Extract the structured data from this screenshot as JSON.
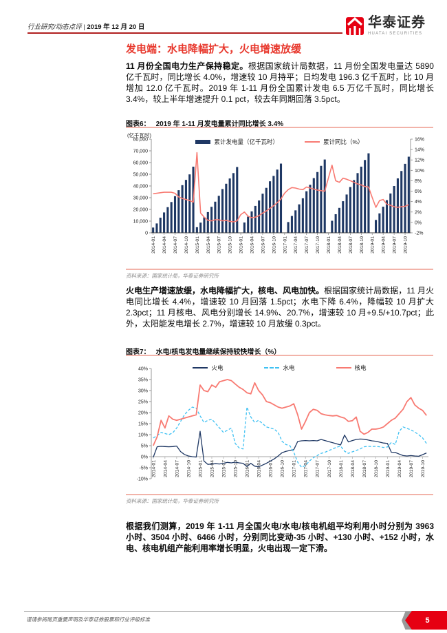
{
  "header": {
    "breadcrumb": "行业研究/动态点评",
    "divider": "|",
    "date": "2019 年 12 月 20 日",
    "brand": {
      "name_cn": "华泰证券",
      "name_en": "HUATAI SECURITIES",
      "logo_color": "#e60012"
    }
  },
  "title": "发电端：水电降幅扩大，火电增速放缓",
  "paragraphs": {
    "p1_bold": "11 月份全国电力生产保持稳定。",
    "p1_rest": "根据国家统计局数据，11 月份全国发电量达 5890 亿千瓦时，同比增长 4.0%，增速较 10 月持平；日均发电 196.3 亿千瓦时，比 10 月增加 12.0 亿千瓦时。2019 年 1-11 月份全国累计发电 6.5 万亿千瓦时，同比增长 3.4%，较上半年增速提升 0.1 pct，较去年同期回落 3.5pct。",
    "p2_bold": "火电生产增速放缓，水电降幅扩大，核电、风电加快。",
    "p2_rest": "根据国家统计局数据，11 月火电同比增长 4.4%，增速较 10 月回落 1.5pct；水电下降 6.4%，降幅较 10 月扩大 2.3pct；11 月核电、风电分别增长 14.9%、20.7%，增速较 10 月+9.5/+10.7pct；此外，太阳能发电增长 2.7%，增速较 10 月放缓 0.3pct。",
    "p3": "根据我们测算，2019 年 1-11 月全国火电/水电/核电机组平均利用小时分别为 3963 小时、3504 小时、6466 小时，分别同比变动-35 小时、+130 小时、+152 小时，水电、核电机组产能利用率增长明显，火电出现一定下滑。"
  },
  "figure6": {
    "label": "图表6：",
    "title": "2019 年 1-11 月发电量累计同比增长 3.4%",
    "unit": "(亿千瓦时)",
    "legend": {
      "bars": "累计发电量（亿千瓦时）",
      "line": "累计同比（%）"
    },
    "source": "资料来源：国家统计局，华泰证券研究所"
  },
  "figure7": {
    "label": "图表7：",
    "title": "水电/核电发电量继续保持较快增长（%）",
    "legend": {
      "fire": "火电",
      "hydro": "水电",
      "nuclear": "核电"
    },
    "source": "资料来源：国家统计局，华泰证券研究所"
  },
  "footer": {
    "disclaimer": "谨请参阅尾页重要声明及华泰证券股票和行业评级标准",
    "page_number": "5"
  },
  "chart_data": [
    {
      "type": "bar",
      "title": "2019 年 1-11 月发电量累计同比增长 3.4%",
      "x_start": "2014-01",
      "x_end": "2019-11",
      "months_per_tick": 3,
      "x_labels": [
        "2014-01",
        "2014-04",
        "2014-07",
        "2014-10",
        "2015-01",
        "2015-04",
        "2015-07",
        "2015-10",
        "2016-01",
        "2016-04",
        "2016-07",
        "2016-10",
        "2017-01",
        "2017-04",
        "2017-07",
        "2017-10",
        "2018-01",
        "2018-04",
        "2018-07",
        "2018-10",
        "2019-01",
        "2019-04",
        "2019-07",
        "2019-10"
      ],
      "left_axis": {
        "min": 0,
        "max": 80000,
        "tick_labels": [
          "0",
          "10,000",
          "20,000",
          "30,000",
          "40,000",
          "50,000",
          "60,000",
          "70,000",
          "80,000"
        ]
      },
      "right_axis": {
        "min": -2,
        "max": 16,
        "tick_labels": [
          "-2%",
          "0%",
          "2%",
          "4%",
          "6%",
          "8%",
          "10%",
          "12%",
          "14%",
          "16%"
        ]
      },
      "bars": {
        "name": "累计发电量（亿千瓦时）",
        "color": "#1f3864",
        "axis": "left",
        "values": [
          4500,
          8000,
          12900,
          17400,
          21900,
          26300,
          31300,
          36400,
          40700,
          45200,
          49900,
          56500,
          4800,
          8700,
          13300,
          17700,
          22200,
          26600,
          31600,
          37400,
          41900,
          46400,
          51000,
          56200,
          null,
          8800,
          13800,
          18300,
          23000,
          27600,
          33400,
          38400,
          44000,
          48600,
          54000,
          59100,
          null,
          9200,
          14400,
          19200,
          24300,
          29500,
          35500,
          41000,
          46700,
          51900,
          57200,
          62600,
          null,
          10300,
          15900,
          21300,
          27000,
          32700,
          39100,
          45000,
          51000,
          56500,
          62200,
          67900,
          null,
          11000,
          16600,
          22300,
          27900,
          33600,
          40000,
          46500,
          52800,
          58900,
          65000
        ]
      },
      "line": {
        "name": "累计同比（%）",
        "color": "#f87a72",
        "axis": "right",
        "values": [
          5.5,
          5.6,
          5.7,
          5.8,
          5.8,
          5.8,
          5.6,
          4.9,
          4.6,
          4.4,
          4.2,
          3.9,
          13.4,
          1.8,
          1.0,
          0.4,
          0.3,
          0.5,
          0.5,
          0.3,
          0.4,
          0.2,
          0.1,
          0.3,
          1.5,
          2.0,
          1.2,
          0.9,
          1.0,
          1.3,
          1.8,
          2.2,
          2.7,
          3.2,
          3.8,
          4.5,
          5.6,
          6.3,
          6.7,
          6.6,
          6.4,
          6.3,
          6.8,
          6.6,
          6.4,
          6.2,
          6.1,
          6.0,
          8.5,
          11.0,
          8.0,
          7.7,
          8.5,
          8.3,
          8.0,
          7.7,
          7.4,
          7.2,
          6.9,
          6.8,
          4.8,
          2.9,
          4.2,
          4.4,
          3.5,
          3.3,
          3.0,
          2.9,
          3.0,
          3.1,
          3.4
        ]
      }
    },
    {
      "type": "line",
      "title": "水电/核电发电量继续保持较快增长（%）",
      "x_start": "2014-01",
      "x_end": "2019-11",
      "months_per_tick": 3,
      "x_labels": [
        "2014-01",
        "2014-04",
        "2014-07",
        "2014-10",
        "2015-01",
        "2015-04",
        "2015-07",
        "2015-10",
        "2016-01",
        "2016-04",
        "2016-07",
        "2016-10",
        "2017-01",
        "2017-04",
        "2017-07",
        "2017-10",
        "2018-01",
        "2018-04",
        "2018-07",
        "2018-10",
        "2019-01",
        "2019-04",
        "2019-07",
        "2019-10"
      ],
      "y_axis": {
        "min": -10,
        "max": 40,
        "tick_labels": [
          "-10%",
          "-5%",
          "0%",
          "5%",
          "10%",
          "15%",
          "20%",
          "25%",
          "30%",
          "35%",
          "40%"
        ]
      },
      "series": [
        {
          "name": "火电",
          "color": "#1f3864",
          "dash": null,
          "values": [
            -0.3,
            4.5,
            4.7,
            4.6,
            4.5,
            4.6,
            4.8,
            2.3,
            1.0,
            0.3,
            0.0,
            -0.2,
            11.5,
            -2.0,
            -3.5,
            -3.3,
            -3.2,
            -3.3,
            -3.0,
            -2.6,
            -2.8,
            -2.5,
            -2.8,
            -3.0,
            -4.5,
            -3.0,
            -4.3,
            -4.6,
            -3.8,
            -3.0,
            -2.0,
            -1.0,
            0.3,
            1.8,
            2.4,
            2.8,
            3.2,
            6.9,
            7.2,
            7.3,
            7.2,
            7.3,
            7.2,
            7.8,
            7.3,
            6.8,
            6.3,
            5.8,
            5.3,
            9.8,
            6.7,
            7.3,
            7.8,
            8.0,
            7.9,
            7.6,
            7.2,
            7.0,
            6.6,
            6.2,
            6.0,
            2.0,
            1.9,
            1.2,
            0.5,
            0.3,
            0.5,
            0.3,
            0.2,
            0.9,
            1.7
          ]
        },
        {
          "name": "水电",
          "color": "#3fc1f3",
          "dash": "4 2.5",
          "values": [
            8.5,
            9.5,
            11.0,
            10.5,
            10.0,
            10.8,
            13.0,
            16.0,
            19.0,
            21.0,
            22.5,
            22.0,
            18.5,
            15.5,
            16.5,
            17.0,
            15.0,
            13.0,
            11.0,
            12.0,
            13.0,
            6.0,
            4.0,
            3.5,
            22.5,
            18.0,
            15.5,
            16.5,
            15.0,
            13.5,
            13.0,
            12.5,
            11.0,
            7.0,
            5.5,
            5.0,
            2.0,
            -2.5,
            -4.8,
            -4.0,
            -2.0,
            -0.5,
            0.5,
            1.5,
            2.0,
            2.8,
            3.5,
            4.3,
            4.8,
            2.5,
            1.5,
            2.2,
            2.8,
            3.5,
            4.5,
            4.7,
            4.6,
            4.7,
            4.5,
            4.2,
            4.4,
            6.5,
            5.5,
            11.5,
            13.5,
            12.8,
            12.2,
            11.2,
            10.0,
            8.5,
            6.0
          ]
        },
        {
          "name": "核电",
          "color": "#f87a72",
          "dash": null,
          "values": [
            5.0,
            9.0,
            16.5,
            13.0,
            18.5,
            17.0,
            16.5,
            17.0,
            17.5,
            18.0,
            18.5,
            19.0,
            32.5,
            30.0,
            29.5,
            32.5,
            31.5,
            34.0,
            34.5,
            35.0,
            34.5,
            33.0,
            31.5,
            30.5,
            29.0,
            28.5,
            33.5,
            30.0,
            28.0,
            25.0,
            24.5,
            23.5,
            22.5,
            22.0,
            22.5,
            23.0,
            24.0,
            19.0,
            12.5,
            16.0,
            20.0,
            21.5,
            21.0,
            19.5,
            19.0,
            18.7,
            18.5,
            18.7,
            18.0,
            17.5,
            16.0,
            16.3,
            18.0,
            11.5,
            10.2,
            11.0,
            12.5,
            12.5,
            12.8,
            13.5,
            15.0,
            16.5,
            17.5,
            19.5,
            21.5,
            25.0,
            26.8,
            23.5,
            22.0,
            21.0,
            18.7
          ]
        }
      ]
    }
  ]
}
